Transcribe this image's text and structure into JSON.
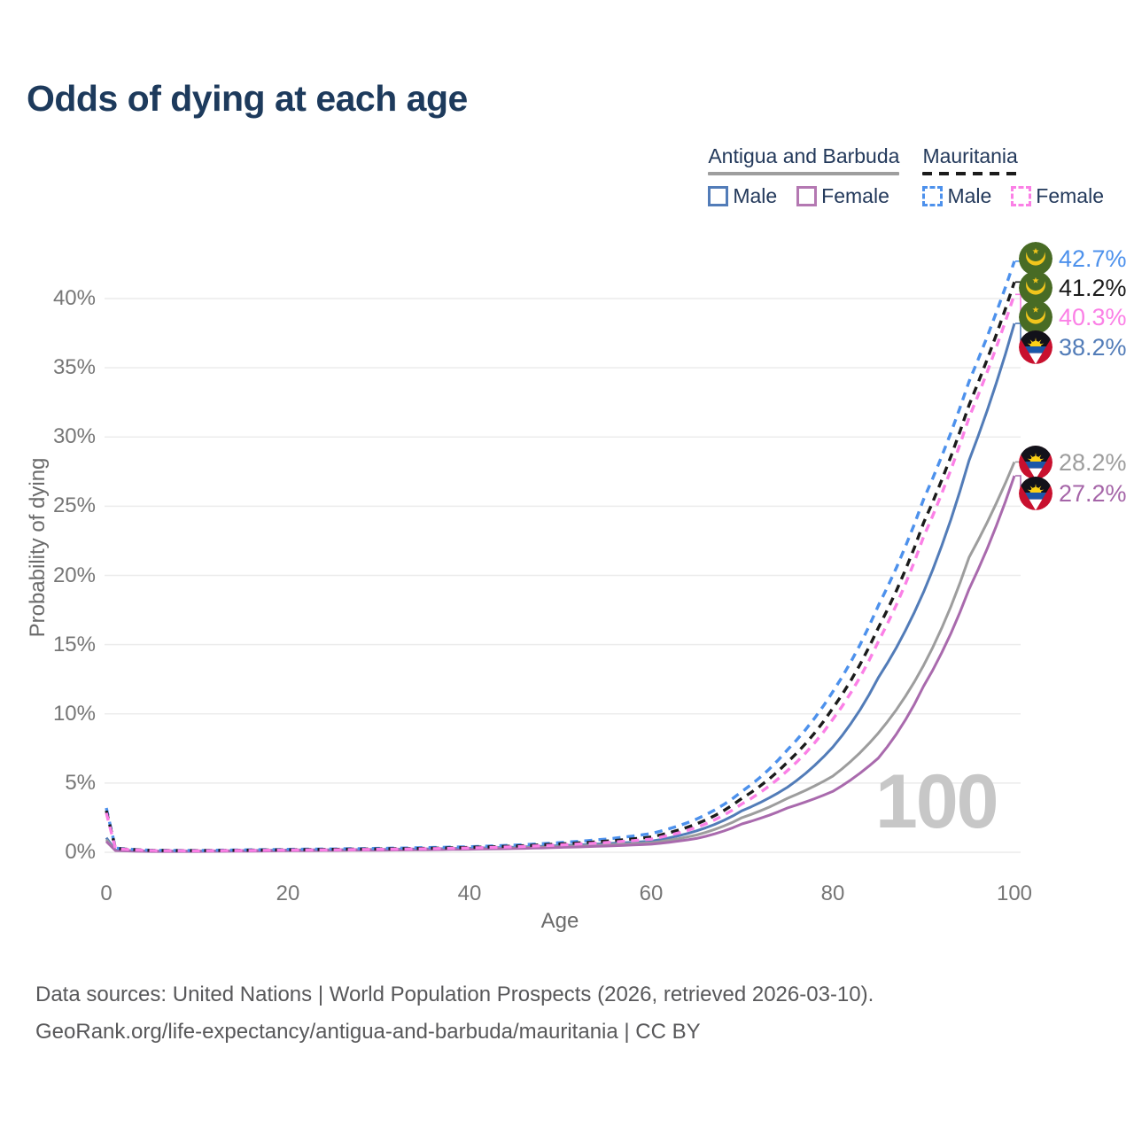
{
  "title": "Odds of dying at each age",
  "watermark": "100",
  "legend": {
    "groups": [
      {
        "country": "Antigua and Barbuda",
        "line_style": "solid",
        "underline_color": "#9e9e9e",
        "items": [
          {
            "label": "Male",
            "color": "#527cb8"
          },
          {
            "label": "Female",
            "color": "#b478b2"
          }
        ]
      },
      {
        "country": "Mauritania",
        "line_style": "dashed",
        "underline_color": "#1b1b1b",
        "items": [
          {
            "label": "Male",
            "color": "#4d91ec"
          },
          {
            "label": "Female",
            "color": "#fb80e6"
          }
        ]
      }
    ]
  },
  "chart_data": {
    "type": "line",
    "title": "Odds of dying at each age",
    "x_axis": {
      "label": "Age",
      "tick_labels": [
        "0",
        "20",
        "40",
        "60",
        "80",
        "100"
      ],
      "tick_values": [
        0,
        20,
        40,
        60,
        80,
        100
      ],
      "range": [
        0,
        100
      ]
    },
    "y_axis": {
      "label": "Probability of dying",
      "tick_labels": [
        "0%",
        "5%",
        "10%",
        "15%",
        "20%",
        "25%",
        "30%",
        "35%",
        "40%"
      ],
      "tick_values": [
        0,
        5,
        10,
        15,
        20,
        25,
        30,
        35,
        40
      ],
      "range": [
        0,
        43.5
      ],
      "unit": "%"
    },
    "grid": "horizontal",
    "legend_position": "top-right",
    "ages": [
      0,
      1,
      5,
      10,
      15,
      20,
      25,
      30,
      35,
      40,
      45,
      50,
      55,
      60,
      65,
      70,
      75,
      80,
      85,
      90,
      95,
      100
    ],
    "series": [
      {
        "id": "mauritania-male",
        "country": "Mauritania",
        "sex": "Male",
        "line_style": "dashed",
        "color": "#4d91ec",
        "label_color": "#4d91ec",
        "flag": "mauritania",
        "end_value": 42.7,
        "end_label": "42.7%",
        "values": [
          3.2,
          0.3,
          0.14,
          0.13,
          0.17,
          0.21,
          0.24,
          0.28,
          0.33,
          0.4,
          0.52,
          0.7,
          0.95,
          1.35,
          2.4,
          4.4,
          7.4,
          11.6,
          17.8,
          25.5,
          34.0,
          42.7
        ]
      },
      {
        "id": "mauritania-combined",
        "country": "Mauritania",
        "line_style": "dashed",
        "color": "#1b1b1b",
        "label_color": "#1b1b1b",
        "flag": "mauritania",
        "end_value": 41.2,
        "end_label": "41.2%",
        "values": [
          3.0,
          0.28,
          0.13,
          0.12,
          0.15,
          0.18,
          0.21,
          0.24,
          0.28,
          0.35,
          0.45,
          0.6,
          0.8,
          1.1,
          2.05,
          3.9,
          6.5,
          10.4,
          16.2,
          23.8,
          32.3,
          41.2
        ]
      },
      {
        "id": "mauritania-female",
        "country": "Mauritania",
        "sex": "Female",
        "line_style": "dashed",
        "color": "#fb80e6",
        "label_color": "#fb80e6",
        "flag": "mauritania",
        "end_value": 40.3,
        "end_label": "40.3%",
        "values": [
          2.85,
          0.26,
          0.12,
          0.11,
          0.13,
          0.16,
          0.18,
          0.21,
          0.25,
          0.31,
          0.4,
          0.53,
          0.7,
          0.95,
          1.8,
          3.5,
          5.9,
          9.6,
          15.2,
          22.8,
          31.4,
          40.3
        ]
      },
      {
        "id": "antigua-and-barbuda-male",
        "country": "Antigua and Barbuda",
        "sex": "Male",
        "line_style": "solid",
        "color": "#527cb8",
        "label_color": "#527cb8",
        "flag": "antigua-and-barbuda",
        "end_value": 38.2,
        "end_label": "38.2%",
        "values": [
          1.05,
          0.16,
          0.08,
          0.08,
          0.12,
          0.16,
          0.18,
          0.2,
          0.24,
          0.29,
          0.37,
          0.48,
          0.62,
          0.8,
          1.55,
          3.0,
          4.7,
          7.6,
          12.6,
          18.8,
          28.3,
          38.2
        ]
      },
      {
        "id": "antigua-and-barbuda-combined",
        "country": "Antigua and Barbuda",
        "line_style": "solid",
        "color": "#9d9d9d",
        "label_color": "#9d9d9d",
        "flag": "antigua-and-barbuda",
        "end_value": 28.2,
        "end_label": "28.2%",
        "values": [
          0.9,
          0.14,
          0.07,
          0.07,
          0.1,
          0.13,
          0.15,
          0.17,
          0.2,
          0.25,
          0.32,
          0.41,
          0.53,
          0.68,
          1.25,
          2.5,
          3.9,
          5.5,
          8.6,
          13.5,
          21.3,
          28.2
        ]
      },
      {
        "id": "antigua-and-barbuda-female",
        "country": "Antigua and Barbuda",
        "sex": "Female",
        "line_style": "solid",
        "color": "#a96aad",
        "label_color": "#a565a8",
        "flag": "antigua-and-barbuda",
        "end_value": 27.2,
        "end_label": "27.2%",
        "values": [
          0.78,
          0.12,
          0.06,
          0.06,
          0.08,
          0.11,
          0.13,
          0.15,
          0.18,
          0.22,
          0.27,
          0.35,
          0.45,
          0.58,
          1.0,
          2.05,
          3.2,
          4.4,
          6.8,
          12.0,
          19.0,
          27.2
        ]
      }
    ],
    "colors": {
      "gridline": "#ececec",
      "tick_text": "#767676",
      "axis_title_text": "#6b6b6b",
      "title_text": "#1d3a5c",
      "watermark": "#c7c7c7",
      "footer_text": "#58585a"
    }
  },
  "footer": {
    "line1": "Data sources: United Nations | World Population Prospects (2026, retrieved 2026-03-10).",
    "line2": "GeoRank.org/life-expectancy/antigua-and-barbuda/mauritania | CC BY"
  }
}
